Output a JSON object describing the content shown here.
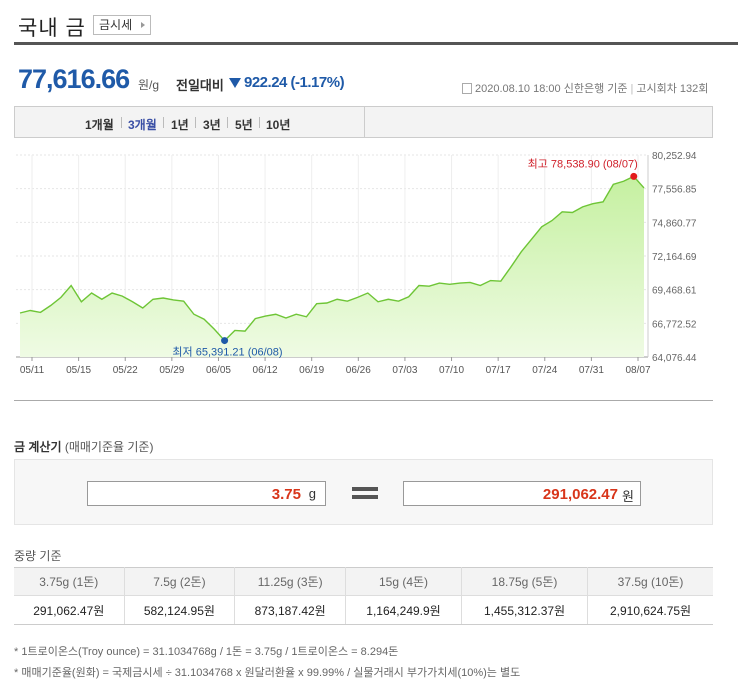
{
  "header": {
    "title": "국내 금",
    "tag_label": "금시세"
  },
  "quote": {
    "price": "77,616.66",
    "unit": "원/g",
    "diff_label": "전일대비",
    "diff_value": "922.24 (-1.17%)",
    "date": "2020.08.10 18:00",
    "bank": "신한은행 기준",
    "round": "고시회차 132회",
    "down_color": "#1f5aa8"
  },
  "periods": [
    "1개월",
    "3개월",
    "1년",
    "3년",
    "5년",
    "10년"
  ],
  "periods_active": "3개월",
  "chart_data": {
    "type": "area",
    "x_ticks": [
      "05/11",
      "05/15",
      "05/22",
      "05/29",
      "06/05",
      "06/12",
      "06/19",
      "06/26",
      "07/03",
      "07/10",
      "07/17",
      "07/24",
      "07/31",
      "08/07"
    ],
    "y_ticks": [
      "80,252.94",
      "77,556.85",
      "74,860.77",
      "72,164.69",
      "69,468.61",
      "66,772.52",
      "64,076.44"
    ],
    "ylim": [
      64076.44,
      80252.94
    ],
    "max_label": "최고 78,538.90 (08/07)",
    "min_label": "최저 65,391.21 (06/08)",
    "series": [
      {
        "values": [
          67600,
          67800,
          67650,
          68200,
          68850,
          69800,
          68500,
          69200,
          68700,
          69200,
          68950,
          68500,
          68000,
          68700,
          68800,
          68650,
          68550,
          67500,
          67100,
          66300,
          65391.21,
          66200,
          66150,
          67150,
          67350,
          67500,
          67200,
          67500,
          67300,
          68350,
          68400,
          68700,
          68550,
          68850,
          69200,
          68500,
          68700,
          68550,
          68900,
          69800,
          69750,
          70000,
          69900,
          70000,
          70050,
          69800,
          70200,
          70150,
          71300,
          72500,
          73500,
          74500,
          75000,
          75700,
          75650,
          76100,
          76350,
          76500,
          77900,
          78150,
          78538.9,
          77616.66
        ],
        "color": "#6ec536",
        "fill_top": "#c5f0a0",
        "fill_bottom": "#effbe4"
      }
    ],
    "grid": true
  },
  "calc": {
    "title": "금 계산기",
    "subtitle": "(매매기준율 기준)",
    "weight_value": "3.75",
    "weight_unit": "g",
    "won_value": "291,062.47",
    "won_unit": "원"
  },
  "weights": {
    "title": "중량 기준",
    "headers": [
      "3.75g (1돈)",
      "7.5g (2돈)",
      "11.25g (3돈)",
      "15g (4돈)",
      "18.75g (5돈)",
      "37.5g (10돈)"
    ],
    "values": [
      "291,062.47원",
      "582,124.95원",
      "873,187.42원",
      "1,164,249.9원",
      "1,455,312.37원",
      "2,910,624.75원"
    ]
  },
  "notes": [
    "* 1트로이온스(Troy ounce) = 31.1034768g / 1돈 = 3.75g / 1트로이온스 = 8.294돈",
    "* 매매기준율(원화) = 국제금시세 ÷ 31.1034768 x 원달러환율 x 99.99% / 실물거래시 부가가치세(10%)는 별도"
  ]
}
